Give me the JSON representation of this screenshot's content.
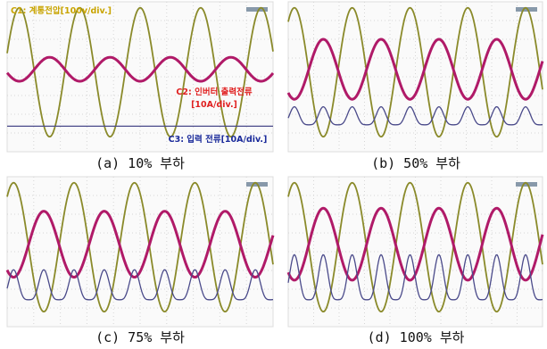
{
  "panels": [
    {
      "caption": "(a) 10% 부하",
      "labels": [
        "C1: 계통전압[100v/div.]",
        "C2: 인버터 출력전류",
        "[10A/div.]",
        "C3: 입력 전류[10A/div.]"
      ]
    },
    {
      "caption": "(b) 50% 부하"
    },
    {
      "caption": "(c) 75% 부하"
    },
    {
      "caption": "(d) 100% 부하"
    }
  ]
}
